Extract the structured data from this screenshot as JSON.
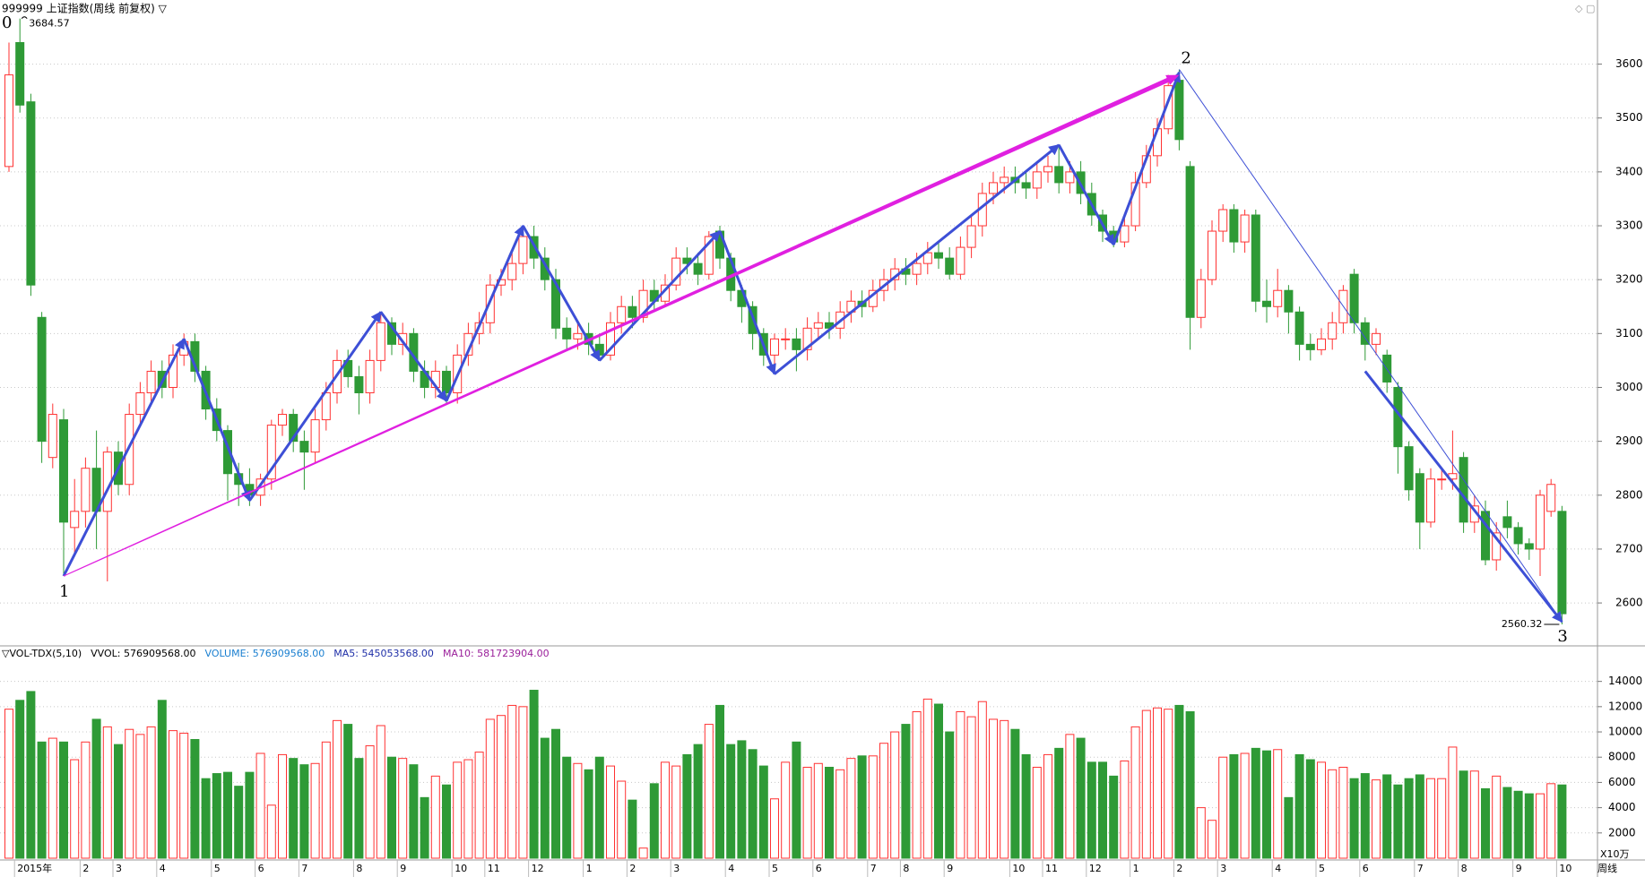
{
  "chart_data": [
    {
      "type": "candlestick",
      "title": "999999 上证指数(周线 前复权) ▽",
      "up_color": "#ff3232",
      "down_color": "#2e9a36",
      "ylim": [
        2522,
        3719
      ],
      "yticks": [
        2600,
        2700,
        2800,
        2900,
        3000,
        3100,
        3200,
        3300,
        3400,
        3500,
        3600
      ],
      "grid": true,
      "wave_labels": [
        "0",
        "1",
        "2",
        "3"
      ],
      "open": [
        3410,
        3640,
        3530,
        3130,
        2870,
        2940,
        2740,
        2770,
        2850,
        2770,
        2880,
        2820,
        2950,
        2990,
        3030,
        3000,
        3060,
        3085,
        3030,
        2960,
        2920,
        2840,
        2820,
        2800,
        2830,
        2930,
        2950,
        2900,
        2880,
        2940,
        2990,
        3050,
        3020,
        2990,
        3050,
        3120,
        3080,
        3100,
        3030,
        3000,
        3030,
        2990,
        3060,
        3100,
        3120,
        3190,
        3200,
        3230,
        3280,
        3240,
        3200,
        3110,
        3090,
        3100,
        3080,
        3060,
        3120,
        3150,
        3130,
        3180,
        3160,
        3190,
        3240,
        3230,
        3210,
        3290,
        3240,
        3180,
        3150,
        3100,
        3060,
        3090,
        3090,
        3070,
        3110,
        3120,
        3110,
        3140,
        3160,
        3150,
        3180,
        3200,
        3220,
        3210,
        3230,
        3250,
        3240,
        3210,
        3260,
        3300,
        3360,
        3380,
        3390,
        3380,
        3370,
        3400,
        3410,
        3380,
        3400,
        3360,
        3320,
        3290,
        3270,
        3300,
        3380,
        3430,
        3480,
        3570,
        3410,
        3130,
        3200,
        3290,
        3330,
        3270,
        3320,
        3160,
        3150,
        3180,
        3140,
        3080,
        3070,
        3090,
        3120,
        3210,
        3120,
        3080,
        3060,
        3000,
        2890,
        2840,
        2750,
        2830,
        2830,
        2870,
        2750,
        2770,
        2680,
        2760,
        2740,
        2710,
        2700,
        2770,
        2770
      ],
      "high": [
        3640,
        3684.57,
        3545,
        3140,
        2970,
        2960,
        2830,
        2870,
        2920,
        2890,
        2900,
        2970,
        3010,
        3050,
        3050,
        3080,
        3100,
        3100,
        3040,
        2980,
        2930,
        2860,
        2850,
        2840,
        2940,
        2960,
        2960,
        2920,
        2960,
        3010,
        3070,
        3070,
        3040,
        3070,
        3140,
        3130,
        3120,
        3110,
        3050,
        3050,
        3040,
        3080,
        3120,
        3140,
        3210,
        3220,
        3250,
        3300,
        3300,
        3260,
        3220,
        3130,
        3120,
        3120,
        3100,
        3140,
        3170,
        3170,
        3200,
        3200,
        3210,
        3260,
        3260,
        3250,
        3290,
        3300,
        3250,
        3190,
        3160,
        3110,
        3100,
        3110,
        3110,
        3130,
        3140,
        3140,
        3160,
        3180,
        3180,
        3200,
        3220,
        3240,
        3240,
        3250,
        3270,
        3270,
        3260,
        3280,
        3320,
        3380,
        3400,
        3410,
        3410,
        3400,
        3420,
        3430,
        3450,
        3420,
        3420,
        3380,
        3330,
        3300,
        3320,
        3400,
        3450,
        3500,
        3580,
        3590,
        3420,
        3220,
        3310,
        3340,
        3340,
        3330,
        3330,
        3200,
        3220,
        3190,
        3150,
        3100,
        3110,
        3140,
        3190,
        3220,
        3130,
        3110,
        3070,
        3010,
        2900,
        2850,
        2850,
        2850,
        2920,
        2880,
        2800,
        2790,
        2750,
        2790,
        2750,
        2720,
        2810,
        2830,
        2780
      ],
      "low": [
        3400,
        3510,
        3170,
        2860,
        2850,
        2650,
        2690,
        2740,
        2700,
        2640,
        2800,
        2800,
        2930,
        2970,
        2980,
        2980,
        3040,
        3010,
        2940,
        2900,
        2790,
        2780,
        2780,
        2780,
        2810,
        2910,
        2880,
        2810,
        2860,
        2920,
        2970,
        3000,
        2950,
        2970,
        3030,
        3060,
        3060,
        3010,
        2980,
        2980,
        2970,
        2970,
        3040,
        3080,
        3100,
        3170,
        3180,
        3210,
        3220,
        3180,
        3090,
        3070,
        3070,
        3060,
        3050,
        3050,
        3100,
        3110,
        3120,
        3140,
        3150,
        3180,
        3210,
        3190,
        3200,
        3220,
        3160,
        3120,
        3070,
        3040,
        3025,
        3070,
        3030,
        3050,
        3090,
        3090,
        3090,
        3120,
        3130,
        3140,
        3160,
        3180,
        3190,
        3190,
        3210,
        3220,
        3200,
        3200,
        3240,
        3280,
        3340,
        3360,
        3360,
        3350,
        3350,
        3380,
        3360,
        3360,
        3340,
        3300,
        3270,
        3260,
        3260,
        3290,
        3370,
        3410,
        3470,
        3440,
        3070,
        3110,
        3190,
        3270,
        3250,
        3250,
        3140,
        3120,
        3130,
        3100,
        3050,
        3050,
        3060,
        3070,
        3100,
        3100,
        3050,
        3060,
        2990,
        2840,
        2790,
        2700,
        2740,
        2810,
        2810,
        2730,
        2730,
        2670,
        2660,
        2720,
        2690,
        2680,
        2650,
        2760,
        2560.32
      ],
      "close": [
        3580,
        3524,
        3190,
        2900,
        2950,
        2750,
        2770,
        2850,
        2770,
        2880,
        2820,
        2950,
        2990,
        3030,
        3000,
        3060,
        3085,
        3030,
        2960,
        2920,
        2840,
        2820,
        2800,
        2830,
        2930,
        2950,
        2900,
        2880,
        2940,
        2990,
        3050,
        3020,
        2990,
        3050,
        3120,
        3080,
        3100,
        3030,
        3000,
        3030,
        2990,
        3060,
        3100,
        3120,
        3190,
        3200,
        3230,
        3280,
        3240,
        3200,
        3110,
        3090,
        3100,
        3080,
        3060,
        3120,
        3150,
        3130,
        3180,
        3160,
        3190,
        3240,
        3230,
        3210,
        3280,
        3240,
        3180,
        3150,
        3100,
        3060,
        3090,
        3090,
        3070,
        3110,
        3120,
        3110,
        3140,
        3160,
        3150,
        3180,
        3200,
        3220,
        3210,
        3230,
        3250,
        3240,
        3210,
        3260,
        3300,
        3360,
        3380,
        3390,
        3380,
        3370,
        3400,
        3410,
        3380,
        3400,
        3360,
        3320,
        3290,
        3270,
        3300,
        3380,
        3430,
        3480,
        3560,
        3460,
        3130,
        3200,
        3290,
        3330,
        3270,
        3320,
        3160,
        3150,
        3180,
        3140,
        3080,
        3070,
        3090,
        3120,
        3180,
        3120,
        3080,
        3100,
        3010,
        2890,
        2810,
        2750,
        2830,
        2830,
        2840,
        2750,
        2780,
        2680,
        2730,
        2740,
        2710,
        2700,
        2800,
        2820,
        2580
      ],
      "trend_lines": [
        {
          "color": "#3d4fd6",
          "x": [
            5,
            16,
            22,
            34,
            40,
            47,
            54,
            65,
            70,
            96,
            101,
            107
          ],
          "values": [
            2650,
            3090,
            2790,
            3140,
            2975,
            3300,
            3050,
            3290,
            3025,
            3450,
            3265,
            3585
          ]
        },
        {
          "color": "#3d4fd6",
          "x": [
            107,
            142
          ],
          "values": [
            3590,
            2565
          ]
        },
        {
          "color": "#3d4fd6",
          "x": [
            124,
            142
          ],
          "values": [
            3030,
            2565
          ]
        },
        {
          "color": "#e020e0",
          "x": [
            5,
            107
          ],
          "values": [
            2650,
            3580
          ]
        }
      ]
    },
    {
      "type": "bar",
      "header": [
        "▽VOL-TDX(5,10)",
        "VVOL: 576909568.00",
        "VOLUME: 576909568.00",
        "MA5: 545053568.00",
        "MA10: 581723904.00"
      ],
      "header_colors": [
        "#000000",
        "#000000",
        "#1a7fd0",
        "#1f2fa8",
        "#9a1f9a"
      ],
      "unit_label": "X10万",
      "period_label": "周线",
      "ylim": [
        0,
        16600
      ],
      "yticks": [
        2000,
        4000,
        6000,
        8000,
        10000,
        12000,
        14000
      ],
      "grid": true,
      "categories": [
        null,
        "2015年",
        null,
        null,
        null,
        null,
        null,
        "2",
        null,
        null,
        "3",
        null,
        null,
        null,
        "4",
        null,
        null,
        null,
        null,
        "5",
        null,
        null,
        null,
        "6",
        null,
        null,
        null,
        "7",
        null,
        null,
        null,
        null,
        "8",
        null,
        null,
        null,
        "9",
        null,
        null,
        null,
        null,
        "10",
        null,
        null,
        "11",
        null,
        null,
        null,
        "12",
        null,
        null,
        null,
        null,
        "1",
        null,
        null,
        null,
        "2",
        null,
        null,
        null,
        "3",
        null,
        null,
        null,
        null,
        "4",
        null,
        null,
        null,
        "5",
        null,
        null,
        null,
        "6",
        null,
        null,
        null,
        null,
        "7",
        null,
        null,
        "8",
        null,
        null,
        null,
        "9",
        null,
        null,
        null,
        null,
        null,
        "10",
        null,
        null,
        "11",
        null,
        null,
        null,
        "12",
        null,
        null,
        null,
        "1",
        null,
        null,
        null,
        "2",
        null,
        null,
        null,
        "3",
        null,
        null,
        null,
        null,
        "4",
        null,
        null,
        null,
        "5",
        null,
        null,
        null,
        "6",
        null,
        null,
        null,
        null,
        "7",
        null,
        null,
        null,
        "8",
        null,
        null,
        null,
        null,
        "9",
        null,
        null,
        null,
        "10"
      ],
      "values": [
        11800,
        12500,
        13200,
        9200,
        9500,
        9200,
        7800,
        9200,
        11000,
        10400,
        9000,
        10200,
        9800,
        10400,
        12500,
        10100,
        9900,
        9400,
        6300,
        6700,
        6800,
        5700,
        6800,
        8300,
        4200,
        8200,
        7900,
        7400,
        7500,
        9200,
        10900,
        10600,
        7900,
        8900,
        10500,
        8000,
        7900,
        7400,
        4800,
        6500,
        5800,
        7600,
        7800,
        8400,
        11000,
        11300,
        12100,
        12000,
        13300,
        9500,
        10200,
        8000,
        7500,
        7000,
        8000,
        7300,
        6100,
        4600,
        800,
        5900,
        7600,
        7300,
        8200,
        9000,
        10600,
        12100,
        9000,
        9300,
        8600,
        7300,
        4700,
        7600,
        9200,
        7200,
        7500,
        7200,
        7000,
        7900,
        8100,
        8100,
        9100,
        10000,
        10600,
        11600,
        12600,
        12200,
        10000,
        11600,
        11200,
        12400,
        11000,
        10900,
        10200,
        8200,
        7200,
        8200,
        8700,
        9800,
        9500,
        7600,
        7600,
        6500,
        7700,
        10400,
        11700,
        11900,
        11800,
        12100,
        11600,
        4000,
        3000,
        8000,
        8200,
        8300,
        8700,
        8500,
        8600,
        4800,
        8200,
        7800,
        7600,
        7000,
        7200,
        6300,
        6700,
        6200,
        6600,
        5800,
        6300,
        6600,
        6300,
        6300,
        8800,
        6900,
        6900,
        5500,
        6500,
        5600,
        5300,
        5100,
        5100,
        5900,
        5800
      ]
    }
  ]
}
